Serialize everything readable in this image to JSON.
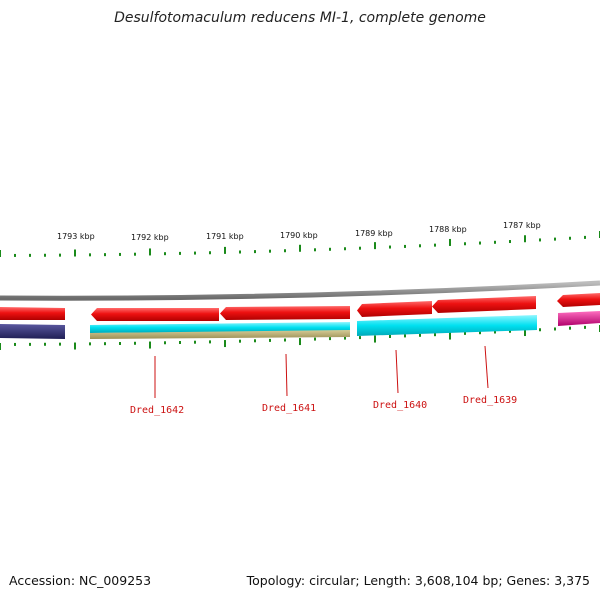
{
  "title": "Desulfotomaculum reducens MI-1, complete genome",
  "footer": {
    "accession": "Accession: NC_009253",
    "summary": "Topology: circular; Length: 3,608,104 bp; Genes: 3,375"
  },
  "ruler": {
    "labels": [
      "1793 kbp",
      "1792 kbp",
      "1791 kbp",
      "1790 kbp",
      "1789 kbp",
      "1788 kbp",
      "1787 kbp"
    ]
  },
  "genes": [
    "Dred_1642",
    "Dred_1641",
    "Dred_1640",
    "Dred_1639"
  ],
  "colors": {
    "forward_gene": "#ee1111",
    "reverse_cds": "#00e0f0",
    "feature_olive": "#b8ac70",
    "feature_navy": "#2b2a6e",
    "feature_magenta": "#e0108a",
    "backbone": "#888888",
    "tick": "#1a8a1a"
  }
}
